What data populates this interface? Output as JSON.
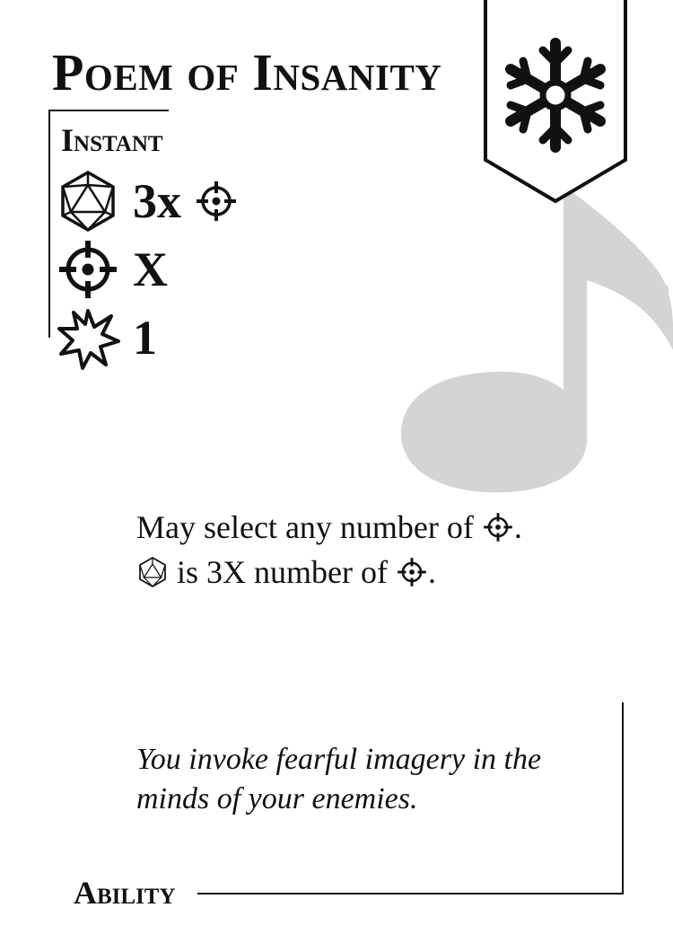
{
  "card": {
    "title": "Poem of Insanity",
    "type": "Instant",
    "category": "Ability",
    "element_icon": "snowflake-icon",
    "background_icon": "music-note-icon",
    "accent_color": "#111111",
    "watermark_color": "#d4d4d4"
  },
  "stats": [
    {
      "icon": "d20-dice-icon",
      "value": "3x",
      "suffix_icon": "target-icon"
    },
    {
      "icon": "target-icon",
      "value": "X"
    },
    {
      "icon": "burst-icon",
      "value": "1"
    }
  ],
  "effect": {
    "line1_text": "May select any number of",
    "line1_end": ".",
    "line2_text": "is 3X number of",
    "line2_end": "."
  },
  "flavor_text": "You invoke fearful imagery in the minds of your enemies."
}
